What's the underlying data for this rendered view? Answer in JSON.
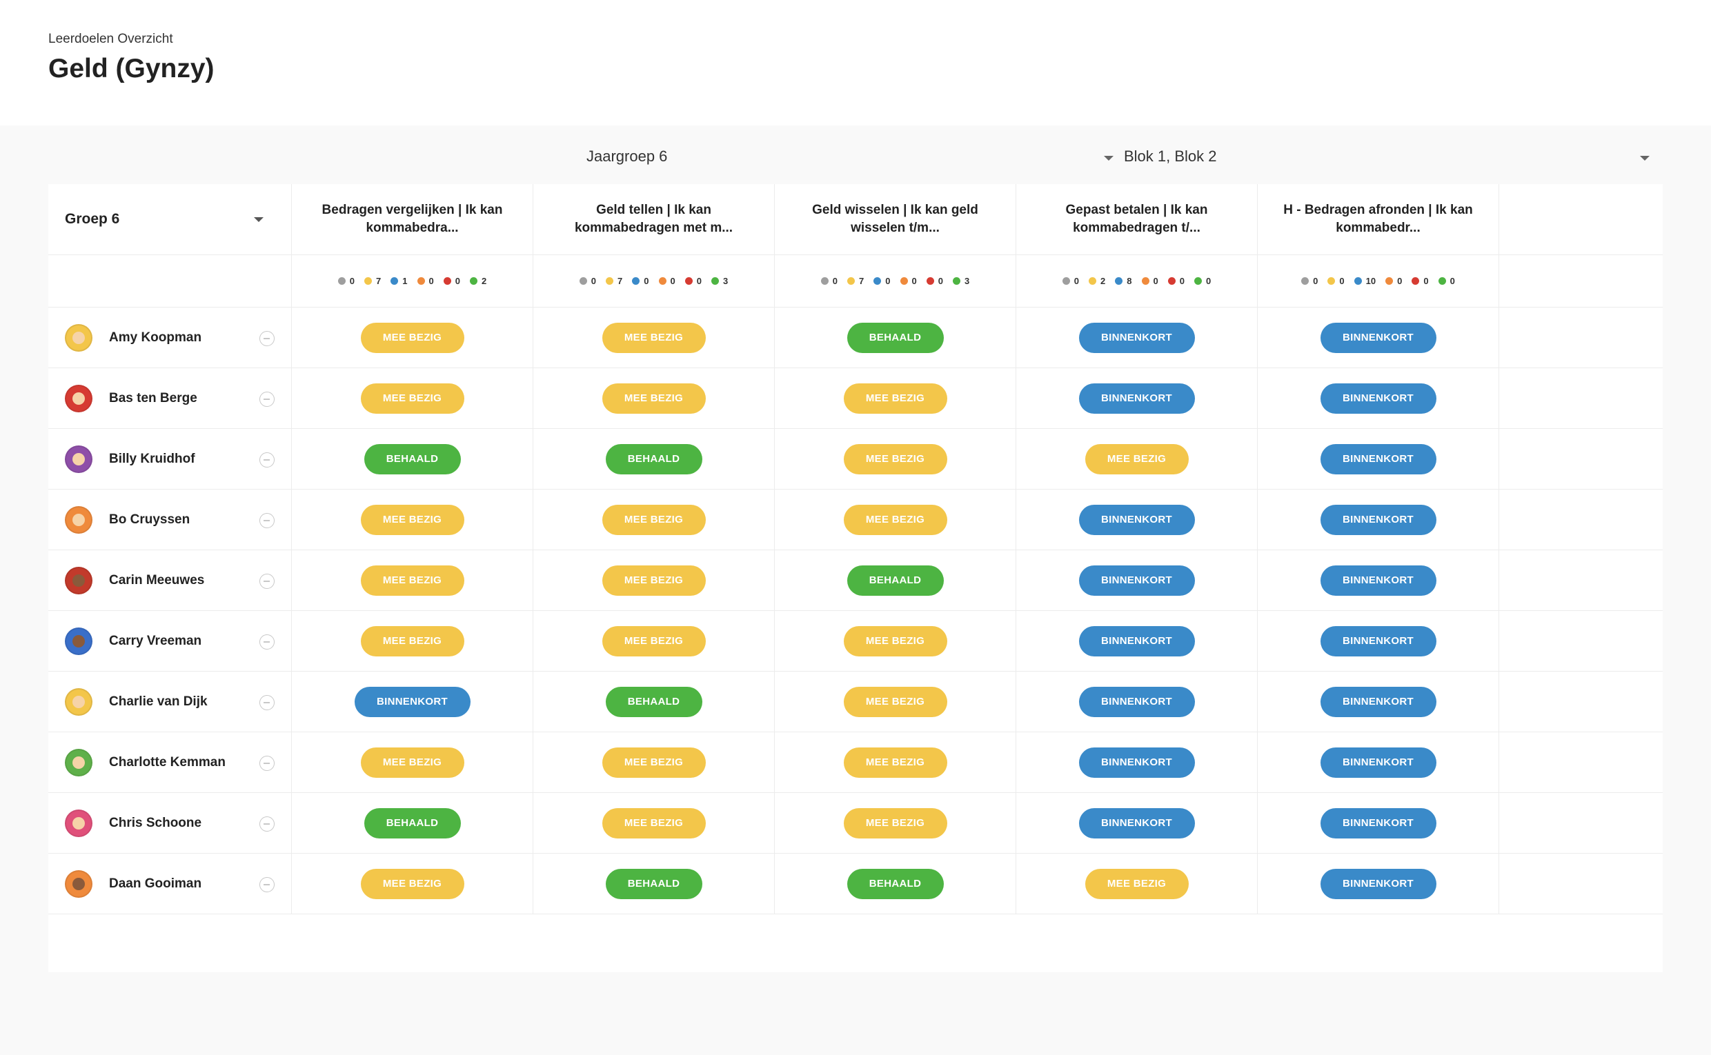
{
  "header": {
    "breadcrumb": "Leerdoelen Overzicht",
    "title": "Geld (Gynzy)"
  },
  "filters": {
    "jaargroep": "Jaargroep 6",
    "blok": "Blok 1, Blok 2"
  },
  "group_select": "Groep 6",
  "status_colors": {
    "grey": "#9e9e9e",
    "yellow": "#f3c64a",
    "blue": "#3a8ac9",
    "orange": "#ef8a3c",
    "red": "#d63b32",
    "green": "#4db442"
  },
  "status_labels": {
    "mee": "MEE BEZIG",
    "behaald": "BEHAALD",
    "binnen": "BINNENKORT"
  },
  "columns": [
    {
      "title": "Bedragen vergelijken | Ik kan kommabedra...",
      "counts": [
        "0",
        "7",
        "1",
        "0",
        "0",
        "2"
      ]
    },
    {
      "title": "Geld tellen | Ik kan kommabedragen met m...",
      "counts": [
        "0",
        "7",
        "0",
        "0",
        "0",
        "3"
      ]
    },
    {
      "title": "Geld wisselen | Ik kan geld wisselen t/m...",
      "counts": [
        "0",
        "7",
        "0",
        "0",
        "0",
        "3"
      ]
    },
    {
      "title": "Gepast betalen | Ik kan kommabedragen t/...",
      "counts": [
        "0",
        "2",
        "8",
        "0",
        "0",
        "0"
      ]
    },
    {
      "title": "H - Bedragen afronden | Ik kan kommabedr...",
      "counts": [
        "0",
        "0",
        "10",
        "0",
        "0",
        "0"
      ]
    }
  ],
  "students": [
    {
      "name": "Amy Koopman",
      "avatar": "#f3c64a",
      "skin": "light",
      "statuses": [
        "mee",
        "mee",
        "behaald",
        "binnen",
        "binnen"
      ]
    },
    {
      "name": "Bas ten Berge",
      "avatar": "#d63b32",
      "skin": "light",
      "statuses": [
        "mee",
        "mee",
        "mee",
        "binnen",
        "binnen"
      ]
    },
    {
      "name": "Billy Kruidhof",
      "avatar": "#8e4fa8",
      "skin": "light",
      "statuses": [
        "behaald",
        "behaald",
        "mee",
        "mee",
        "binnen"
      ]
    },
    {
      "name": "Bo Cruyssen",
      "avatar": "#ef8a3c",
      "skin": "light",
      "statuses": [
        "mee",
        "mee",
        "mee",
        "binnen",
        "binnen"
      ]
    },
    {
      "name": "Carin Meeuwes",
      "avatar": "#c23a2b",
      "skin": "dark",
      "statuses": [
        "mee",
        "mee",
        "behaald",
        "binnen",
        "binnen"
      ]
    },
    {
      "name": "Carry Vreeman",
      "avatar": "#3a6fc9",
      "skin": "dark",
      "statuses": [
        "mee",
        "mee",
        "mee",
        "binnen",
        "binnen"
      ]
    },
    {
      "name": "Charlie van Dijk",
      "avatar": "#f3c64a",
      "skin": "light",
      "statuses": [
        "binnen",
        "behaald",
        "mee",
        "binnen",
        "binnen"
      ]
    },
    {
      "name": "Charlotte Kemman",
      "avatar": "#5fb04a",
      "skin": "light",
      "statuses": [
        "mee",
        "mee",
        "mee",
        "binnen",
        "binnen"
      ]
    },
    {
      "name": "Chris Schoone",
      "avatar": "#e0507a",
      "skin": "light",
      "statuses": [
        "behaald",
        "mee",
        "mee",
        "binnen",
        "binnen"
      ]
    },
    {
      "name": "Daan Gooiman",
      "avatar": "#ef8a3c",
      "skin": "dark",
      "statuses": [
        "mee",
        "behaald",
        "behaald",
        "mee",
        "binnen"
      ]
    }
  ]
}
